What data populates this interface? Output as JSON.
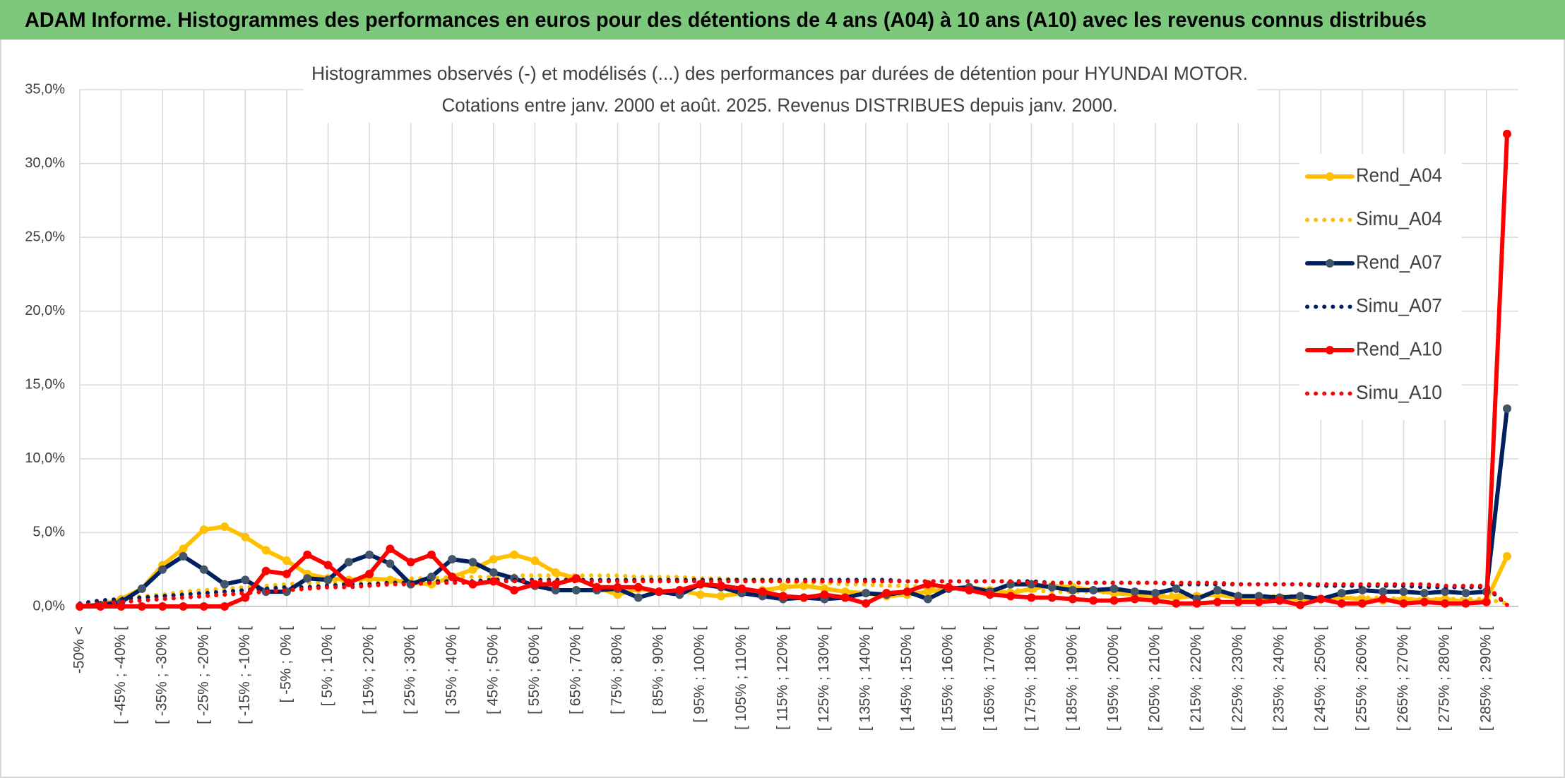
{
  "header": {
    "title": "ADAM Informe. Histogrammes des performances en euros pour des détentions de 4 ans (A04) à 10 ans (A10) avec les revenus connus distribués"
  },
  "chart_data": {
    "type": "line",
    "title": [
      "Histogrammes observés (-) et modélisés (...) des performances par durées de détention pour HYUNDAI MOTOR.",
      "Cotations entre janv. 2000 et août. 2025. Revenus DISTRIBUES depuis janv. 2000."
    ],
    "categories": [
      "-50% <",
      null,
      "[ -45% ; -40% [",
      null,
      "[ -35% ; -30% [",
      null,
      "[ -25% ; -20% [",
      null,
      "[ -15% ; -10% [",
      null,
      "[ -5% ; 0% [",
      null,
      "[ 5% ; 10% [",
      null,
      "[ 15% ; 20% [",
      null,
      "[ 25% ; 30% [",
      null,
      "[ 35% ; 40% [",
      null,
      "[ 45% ; 50% [",
      null,
      "[ 55% ; 60% [",
      null,
      "[ 65% ; 70% [",
      null,
      "[ 75% ; 80% [",
      null,
      "[ 85% ; 90% [",
      null,
      "[ 95% ; 100% [",
      null,
      "[ 105% ; 110% [",
      null,
      "[ 115% ; 120% [",
      null,
      "[ 125% ; 130% [",
      null,
      "[ 135% ; 140% [",
      null,
      "[ 145% ; 150% [",
      null,
      "[ 155% ; 160% [",
      null,
      "[ 165% ; 170% [",
      null,
      "[ 175% ; 180% [",
      null,
      "[ 185% ; 190% [",
      null,
      "[ 195% ; 200% [",
      null,
      "[ 205% ; 210% [",
      null,
      "[ 215% ; 220% [",
      null,
      "[ 225% ; 230% [",
      null,
      "[ 235% ; 240% [",
      null,
      "[ 245% ; 250% [",
      null,
      "[ 255% ; 260% [",
      null,
      "[ 265% ; 270% [",
      null,
      "[ 275% ; 280% [",
      null,
      "[ 285% ; 290% [",
      null
    ],
    "series": [
      {
        "name": "Rend_A04",
        "color": "#FFC000",
        "line_style": "solid",
        "values": [
          0,
          0.1,
          0.5,
          1.2,
          2.8,
          3.9,
          5.2,
          5.4,
          4.7,
          3.8,
          3.1,
          2.2,
          1.9,
          1.8,
          1.9,
          1.8,
          1.6,
          1.5,
          2.0,
          2.5,
          3.2,
          3.5,
          3.1,
          2.3,
          1.9,
          1.3,
          0.8,
          1.2,
          1.0,
          1.1,
          0.8,
          0.7,
          0.9,
          1.1,
          1.3,
          1.4,
          1.2,
          1.0,
          0.9,
          0.7,
          0.8,
          1.0,
          1.2,
          1.3,
          1.1,
          0.9,
          1.2,
          1.4,
          1.3,
          1.1,
          0.9,
          0.8,
          0.7,
          0.6,
          0.7,
          0.8,
          0.6,
          0.5,
          0.6,
          0.5,
          0.5,
          0.6,
          0.5,
          0.4,
          0.5,
          0.4,
          0.5,
          0.3,
          0.4,
          3.4
        ]
      },
      {
        "name": "Simu_A04",
        "color": "#FFC000",
        "line_style": "dotted",
        "values": [
          0.1,
          0.3,
          0.5,
          0.7,
          0.8,
          1.0,
          1.1,
          1.2,
          1.3,
          1.4,
          1.5,
          1.6,
          1.6,
          1.7,
          1.8,
          1.8,
          1.9,
          1.9,
          2.0,
          2.0,
          2.0,
          2.1,
          2.1,
          2.1,
          2.1,
          2.1,
          2.1,
          2.0,
          2.0,
          2.0,
          1.9,
          1.9,
          1.8,
          1.8,
          1.7,
          1.6,
          1.6,
          1.5,
          1.5,
          1.4,
          1.4,
          1.3,
          1.3,
          1.2,
          1.2,
          1.1,
          1.1,
          1.0,
          1.0,
          1.0,
          0.9,
          0.9,
          0.9,
          0.8,
          0.8,
          0.8,
          0.7,
          0.7,
          0.7,
          0.7,
          0.6,
          0.6,
          0.6,
          0.6,
          0.5,
          0.5,
          0.5,
          0.5,
          0.5,
          0.2
        ]
      },
      {
        "name": "Rend_A07",
        "color": "#002060",
        "line_style": "solid",
        "values": [
          0,
          0.1,
          0.3,
          1.2,
          2.5,
          3.4,
          2.5,
          1.5,
          1.8,
          1.0,
          1.0,
          1.9,
          1.8,
          3.0,
          3.5,
          2.9,
          1.5,
          2.0,
          3.2,
          3.0,
          2.3,
          1.9,
          1.4,
          1.1,
          1.1,
          1.1,
          1.2,
          0.6,
          1.0,
          0.8,
          1.5,
          1.3,
          0.9,
          0.7,
          0.5,
          0.6,
          0.5,
          0.6,
          0.9,
          0.8,
          1.0,
          0.5,
          1.2,
          1.3,
          1.0,
          1.5,
          1.5,
          1.3,
          1.1,
          1.1,
          1.2,
          1.0,
          0.9,
          1.2,
          0.5,
          1.1,
          0.7,
          0.7,
          0.6,
          0.7,
          0.5,
          0.9,
          1.1,
          1.0,
          1.0,
          0.9,
          1.0,
          0.9,
          1.0,
          13.4
        ]
      },
      {
        "name": "Simu_A07",
        "color": "#002060",
        "line_style": "dotted",
        "values": [
          0.2,
          0.4,
          0.5,
          0.6,
          0.7,
          0.8,
          0.9,
          1.0,
          1.1,
          1.2,
          1.3,
          1.3,
          1.4,
          1.5,
          1.5,
          1.6,
          1.6,
          1.7,
          1.7,
          1.7,
          1.8,
          1.8,
          1.8,
          1.8,
          1.8,
          1.8,
          1.8,
          1.8,
          1.8,
          1.8,
          1.8,
          1.8,
          1.8,
          1.8,
          1.8,
          1.8,
          1.8,
          1.8,
          1.8,
          1.8,
          1.7,
          1.7,
          1.7,
          1.7,
          1.7,
          1.7,
          1.7,
          1.6,
          1.6,
          1.6,
          1.6,
          1.6,
          1.6,
          1.5,
          1.5,
          1.5,
          1.5,
          1.5,
          1.5,
          1.5,
          1.4,
          1.4,
          1.4,
          1.4,
          1.4,
          1.3,
          1.3,
          1.3,
          1.3,
          0.1
        ]
      },
      {
        "name": "Rend_A10",
        "color": "#FF0000",
        "line_style": "solid",
        "values": [
          0,
          0,
          0,
          0,
          0,
          0,
          0,
          0,
          0.6,
          2.4,
          2.2,
          3.5,
          2.8,
          1.6,
          2.2,
          3.9,
          3.0,
          3.5,
          2.0,
          1.5,
          1.7,
          1.1,
          1.5,
          1.5,
          1.9,
          1.3,
          1.3,
          1.3,
          1.0,
          1.1,
          1.5,
          1.4,
          1.2,
          1.0,
          0.7,
          0.6,
          0.8,
          0.6,
          0.2,
          0.9,
          1.0,
          1.5,
          1.3,
          1.1,
          0.8,
          0.7,
          0.6,
          0.6,
          0.5,
          0.4,
          0.4,
          0.5,
          0.4,
          0.2,
          0.2,
          0.3,
          0.3,
          0.3,
          0.4,
          0.1,
          0.5,
          0.2,
          0.2,
          0.5,
          0.2,
          0.3,
          0.2,
          0.2,
          0.3,
          32.0
        ]
      },
      {
        "name": "Simu_A10",
        "color": "#FF0000",
        "line_style": "dotted",
        "values": [
          0.1,
          0.2,
          0.3,
          0.4,
          0.5,
          0.6,
          0.7,
          0.8,
          0.9,
          1.0,
          1.1,
          1.2,
          1.3,
          1.3,
          1.4,
          1.5,
          1.5,
          1.6,
          1.6,
          1.6,
          1.7,
          1.7,
          1.7,
          1.7,
          1.7,
          1.7,
          1.7,
          1.7,
          1.7,
          1.7,
          1.7,
          1.7,
          1.7,
          1.7,
          1.7,
          1.7,
          1.7,
          1.7,
          1.7,
          1.7,
          1.7,
          1.7,
          1.7,
          1.7,
          1.7,
          1.7,
          1.6,
          1.6,
          1.6,
          1.6,
          1.6,
          1.6,
          1.6,
          1.6,
          1.6,
          1.6,
          1.5,
          1.5,
          1.5,
          1.5,
          1.5,
          1.5,
          1.5,
          1.5,
          1.5,
          1.5,
          1.4,
          1.4,
          1.4,
          0.1
        ]
      }
    ],
    "ylim": [
      0,
      35
    ],
    "yticks": [
      {
        "value": 0,
        "label": "0,0%"
      },
      {
        "value": 5,
        "label": "5,0%"
      },
      {
        "value": 10,
        "label": "10,0%"
      },
      {
        "value": 15,
        "label": "15,0%"
      },
      {
        "value": 20,
        "label": "20,0%"
      },
      {
        "value": 25,
        "label": "25,0%"
      },
      {
        "value": 30,
        "label": "30,0%"
      },
      {
        "value": 35,
        "label": "35,0%"
      }
    ],
    "grid": true,
    "legend": "right"
  }
}
